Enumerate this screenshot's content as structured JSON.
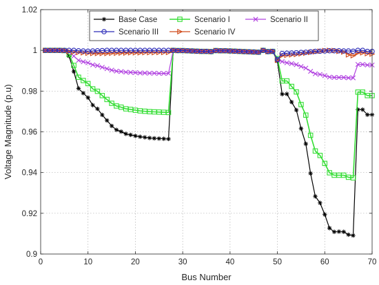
{
  "chart_data": {
    "type": "line",
    "xlabel": "Bus Number",
    "ylabel": "Voltage Magnitude (p.u)",
    "xlim": [
      0,
      70
    ],
    "ylim": [
      0.9,
      1.02
    ],
    "xticks": [
      0,
      10,
      20,
      30,
      40,
      50,
      60,
      70
    ],
    "xtick_labels": [
      "0",
      "10",
      "20",
      "30",
      "40",
      "50",
      "60",
      "70"
    ],
    "yticks": [
      0.9,
      0.92,
      0.94,
      0.96,
      0.98,
      1.0,
      1.02
    ],
    "ytick_labels": [
      "0.9",
      "0.92",
      "0.94",
      "0.96",
      "0.98",
      "1",
      "1.02"
    ],
    "grid": true,
    "legend_position": "top",
    "legend_columns": 3,
    "series": [
      {
        "name": "Base Case",
        "color": "#000000",
        "marker": "asterisk",
        "values": [
          1.0,
          1.0,
          1.0,
          1.0,
          0.9999,
          0.9972,
          0.9896,
          0.9813,
          0.979,
          0.9768,
          0.9731,
          0.9713,
          0.9683,
          0.9656,
          0.9629,
          0.961,
          0.9601,
          0.959,
          0.9585,
          0.958,
          0.9576,
          0.9573,
          0.957,
          0.9568,
          0.9567,
          0.9566,
          0.9565,
          1.0,
          0.9999,
          0.9999,
          0.9998,
          0.9997,
          0.9996,
          0.9995,
          0.9995,
          0.9994,
          0.9999,
          0.9998,
          0.9998,
          0.9997,
          0.9996,
          0.9995,
          0.9994,
          0.9993,
          0.9992,
          0.9991,
          1.0,
          0.9994,
          0.9995,
          0.9947,
          0.9785,
          0.9786,
          0.9746,
          0.9707,
          0.9616,
          0.9541,
          0.9396,
          0.9283,
          0.9251,
          0.9194,
          0.9127,
          0.9109,
          0.911,
          0.9109,
          0.9095,
          0.9091,
          0.9709,
          0.9709,
          0.9684,
          0.9684
        ]
      },
      {
        "name": "Scenario I",
        "color": "#33dd33",
        "marker": "square",
        "values": [
          1.0,
          1.0,
          1.0,
          1.0,
          0.9999,
          0.998,
          0.9926,
          0.9868,
          0.9852,
          0.9837,
          0.9811,
          0.9799,
          0.9778,
          0.9759,
          0.974,
          0.9727,
          0.9721,
          0.9713,
          0.971,
          0.9706,
          0.9703,
          0.9701,
          0.9699,
          0.9698,
          0.9697,
          0.9696,
          0.9695,
          1.0,
          0.9999,
          0.9999,
          0.9998,
          0.9997,
          0.9996,
          0.9995,
          0.9995,
          0.9994,
          0.9999,
          0.9998,
          0.9998,
          0.9997,
          0.9996,
          0.9995,
          0.9994,
          0.9993,
          0.9992,
          0.9991,
          1.0,
          0.9994,
          0.9995,
          0.996,
          0.985,
          0.985,
          0.9823,
          0.9796,
          0.9734,
          0.9682,
          0.9583,
          0.9506,
          0.9484,
          0.9445,
          0.9399,
          0.9387,
          0.9387,
          0.9387,
          0.9377,
          0.9374,
          0.9795,
          0.9795,
          0.9778,
          0.9778
        ]
      },
      {
        "name": "Scenario II",
        "color": "#b040e0",
        "marker": "x",
        "values": [
          1.0,
          1.0,
          1.0,
          1.0,
          0.9999,
          0.9992,
          0.9972,
          0.9951,
          0.9944,
          0.9939,
          0.9929,
          0.9925,
          0.9917,
          0.991,
          0.9903,
          0.9898,
          0.9896,
          0.9893,
          0.9892,
          0.9891,
          0.9889,
          0.9889,
          0.9888,
          0.9888,
          0.9887,
          0.9887,
          0.9887,
          1.0,
          0.9999,
          0.9999,
          0.9998,
          0.9997,
          0.9996,
          0.9995,
          0.9995,
          0.9994,
          0.9999,
          0.9998,
          0.9998,
          0.9997,
          0.9996,
          0.9995,
          0.9994,
          0.9993,
          0.9992,
          0.9991,
          1.0,
          0.9994,
          0.9995,
          0.9952,
          0.9945,
          0.9939,
          0.9935,
          0.993,
          0.9921,
          0.9913,
          0.9897,
          0.9885,
          0.9882,
          0.9876,
          0.9869,
          0.9867,
          0.9867,
          0.9867,
          0.9865,
          0.9865,
          0.9931,
          0.9931,
          0.9928,
          0.9928
        ]
      },
      {
        "name": "Scenario III",
        "color": "#2a2ab8",
        "marker": "circle",
        "values": [
          1.0,
          1.0,
          1.0,
          1.0,
          1.0,
          1.0,
          1.0,
          0.9998,
          0.9997,
          0.9996,
          0.9997,
          0.9998,
          0.9999,
          1.0,
          1.0,
          1.0,
          1.0,
          1.0,
          1.0,
          1.0,
          1.0,
          1.0,
          1.0,
          1.0,
          1.0,
          1.0,
          1.0,
          1.0,
          0.9999,
          0.9999,
          0.9998,
          0.9997,
          0.9996,
          0.9995,
          0.9995,
          0.9994,
          0.9999,
          0.9998,
          0.9998,
          0.9997,
          0.9996,
          0.9995,
          0.9994,
          0.9993,
          0.9992,
          0.9991,
          1.0,
          0.9994,
          0.9995,
          0.9955,
          0.9985,
          0.9986,
          0.9987,
          0.9988,
          0.999,
          0.9991,
          0.9993,
          0.9995,
          0.9996,
          0.9997,
          0.9998,
          0.9998,
          0.9998,
          0.9997,
          0.9997,
          0.9996,
          1.0,
          1.0,
          0.9995,
          0.9995
        ]
      },
      {
        "name": "Scenario IV",
        "color": "#d04a1a",
        "marker": "triangle-right",
        "values": [
          1.0,
          1.0,
          1.0,
          1.0,
          0.9999,
          0.9995,
          0.9992,
          0.999,
          0.9988,
          0.9986,
          0.9985,
          0.9985,
          0.9985,
          0.9985,
          0.9986,
          0.9986,
          0.9987,
          0.9987,
          0.9988,
          0.9988,
          0.9988,
          0.9989,
          0.9989,
          0.9989,
          0.999,
          0.999,
          0.999,
          1.0,
          0.9999,
          0.9999,
          0.9998,
          0.9997,
          0.9996,
          0.9995,
          0.9995,
          0.9994,
          0.9999,
          0.9998,
          0.9998,
          0.9997,
          0.9996,
          0.9995,
          0.9994,
          0.9993,
          0.9992,
          0.9991,
          1.0,
          0.9994,
          0.9995,
          0.9952,
          0.9975,
          0.9976,
          0.9978,
          0.998,
          0.9983,
          0.9986,
          0.999,
          0.9993,
          0.9996,
          0.9999,
          1.0,
          0.9999,
          0.9995,
          0.9992,
          0.9978,
          0.9974,
          0.9988,
          0.9988,
          0.9984,
          0.9982
        ]
      }
    ]
  }
}
